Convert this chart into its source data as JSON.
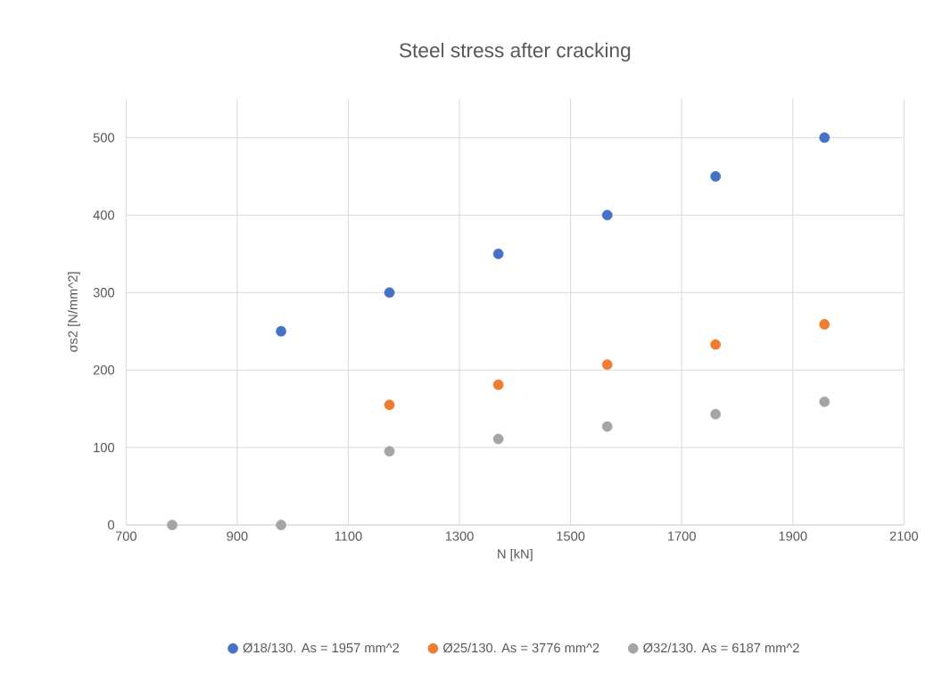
{
  "chart_data": {
    "type": "scatter",
    "title": "Steel stress after cracking",
    "xlabel": "N [kN]",
    "ylabel": "σs2 [N/mm^2]",
    "x": [
      783,
      979,
      1174,
      1370,
      1566,
      1761,
      1957
    ],
    "series": [
      {
        "name": "Ø18/130. As = 1957 mm^2",
        "color": "#4472c4",
        "values": [
          null,
          250,
          300,
          350,
          400,
          450,
          500
        ]
      },
      {
        "name": "Ø25/130. As = 3776 mm^2",
        "color": "#ed7d31",
        "values": [
          null,
          null,
          155,
          181,
          207,
          233,
          259
        ]
      },
      {
        "name": "Ø32/130. As = 6187 mm^2",
        "color": "#a5a5a5",
        "values": [
          0,
          0,
          95,
          111,
          127,
          143,
          159
        ]
      }
    ],
    "xlim": [
      700,
      2100
    ],
    "xticks": [
      700,
      900,
      1100,
      1300,
      1500,
      1700,
      1900,
      2100
    ],
    "ylim": [
      0,
      550
    ],
    "yticks": [
      0,
      100,
      200,
      300,
      400,
      500
    ],
    "grid": true,
    "legend": "bottom",
    "marker": "circle"
  }
}
